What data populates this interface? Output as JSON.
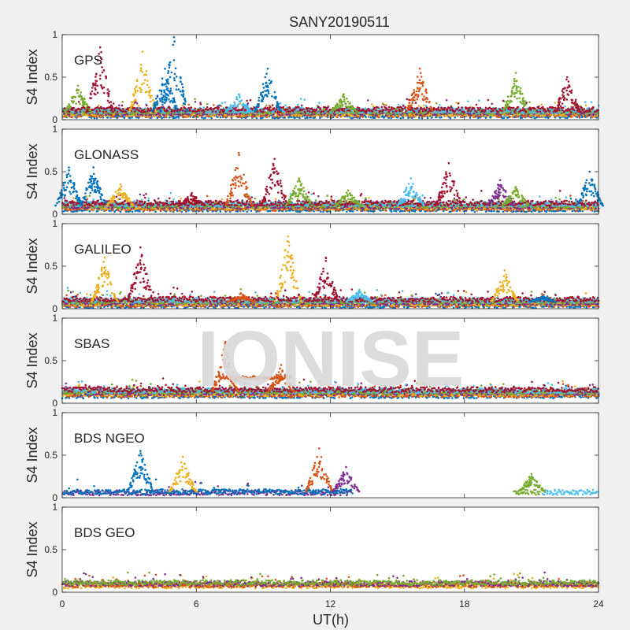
{
  "figure": {
    "title": "SANY20190511",
    "watermark": "IONISE",
    "background": "#f0f0f0",
    "axes_background": "#ffffff"
  },
  "chart_data": {
    "type": "scatter",
    "title": "SANY20190511",
    "xlabel": "UT(h)",
    "ylabel": "S4 Index",
    "xlim": [
      0,
      24
    ],
    "ylim": [
      0,
      1
    ],
    "xticks": [
      "0",
      "6",
      "12",
      "18",
      "24"
    ],
    "yticks": [
      "0",
      "0.5",
      "1"
    ],
    "grid": false,
    "series_colors": [
      "#0072bd",
      "#d95319",
      "#edb120",
      "#7e2f8e",
      "#77ac30",
      "#4dbeee",
      "#a2142f"
    ],
    "panels": [
      {
        "label": "GPS",
        "baseline": 0.09,
        "segments": [
          [
            0,
            24,
            "all"
          ]
        ],
        "bursts": [
          [
            0.7,
            0.4,
            4
          ],
          [
            1.7,
            0.85,
            6
          ],
          [
            3.6,
            0.8,
            2
          ],
          [
            4.6,
            0.6,
            0
          ],
          [
            5.0,
            0.97,
            0
          ],
          [
            7.9,
            0.3,
            5
          ],
          [
            9.2,
            0.6,
            0
          ],
          [
            12.6,
            0.3,
            4
          ],
          [
            16.0,
            0.6,
            1
          ],
          [
            20.3,
            0.55,
            4
          ],
          [
            22.6,
            0.5,
            6
          ]
        ]
      },
      {
        "label": "GLONASS",
        "baseline": 0.1,
        "segments": [
          [
            0,
            24,
            "all"
          ]
        ],
        "bursts": [
          [
            0.3,
            0.55,
            0
          ],
          [
            1.4,
            0.55,
            0
          ],
          [
            2.6,
            0.35,
            2
          ],
          [
            5.8,
            0.25,
            6
          ],
          [
            7.9,
            0.72,
            1
          ],
          [
            9.5,
            0.65,
            6
          ],
          [
            10.6,
            0.42,
            4
          ],
          [
            12.8,
            0.28,
            4
          ],
          [
            15.6,
            0.42,
            5
          ],
          [
            17.3,
            0.6,
            6
          ],
          [
            19.6,
            0.4,
            3
          ],
          [
            20.3,
            0.32,
            4
          ],
          [
            23.6,
            0.5,
            0
          ]
        ]
      },
      {
        "label": "GALILEO",
        "baseline": 0.08,
        "segments": [
          [
            0,
            24,
            "all"
          ]
        ],
        "bursts": [
          [
            1.9,
            0.6,
            2
          ],
          [
            3.5,
            0.72,
            6
          ],
          [
            8.0,
            0.18,
            1
          ],
          [
            10.1,
            0.85,
            2
          ],
          [
            11.8,
            0.6,
            6
          ],
          [
            13.3,
            0.22,
            5
          ],
          [
            19.8,
            0.45,
            2
          ],
          [
            21.5,
            0.15,
            0
          ]
        ]
      },
      {
        "label": "SBAS",
        "baseline": 0.13,
        "segments": [
          [
            0,
            24,
            "all"
          ]
        ],
        "bursts": [
          [
            7.3,
            0.72,
            1
          ],
          [
            9.8,
            0.45,
            1
          ]
        ],
        "extra_segments": [
          [
            7.0,
            10.3,
            0.3,
            1
          ]
        ]
      },
      {
        "label": "BDS NGEO",
        "baseline": 0.07,
        "segments": [
          [
            0,
            13.0,
            [
              3,
              0
            ]
          ],
          [
            20.2,
            21.4,
            [
              4
            ]
          ],
          [
            21.5,
            24,
            [
              5
            ]
          ]
        ],
        "bursts": [
          [
            3.5,
            0.55,
            0
          ],
          [
            5.4,
            0.48,
            2
          ],
          [
            11.5,
            0.58,
            1
          ],
          [
            12.7,
            0.36,
            3
          ],
          [
            21.0,
            0.28,
            4
          ]
        ]
      },
      {
        "label": "BDS GEO",
        "baseline": 0.1,
        "segments": [
          [
            0,
            24,
            [
              2,
              1,
              3,
              4
            ]
          ]
        ],
        "bursts": []
      }
    ]
  }
}
